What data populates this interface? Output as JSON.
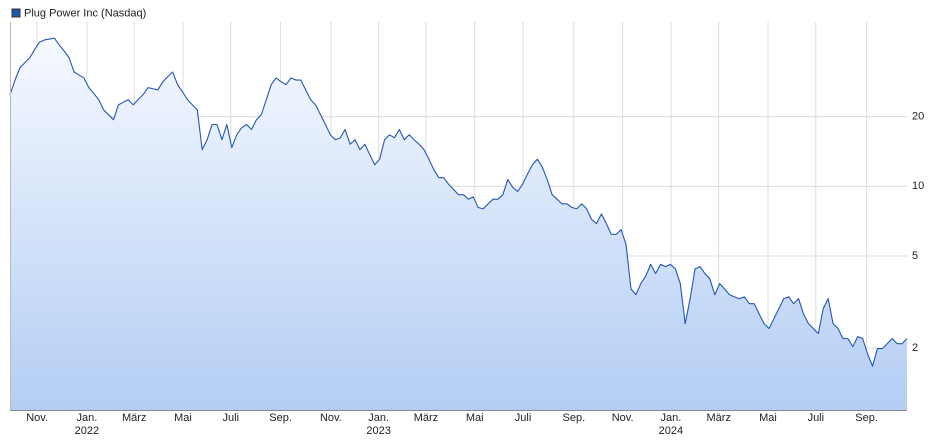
{
  "chart_data": {
    "type": "line",
    "log_y": true,
    "grid": true,
    "xlim": [
      0,
      182
    ],
    "ylim": [
      1.08,
      51.3
    ],
    "yticks": [
      2,
      5,
      10,
      20
    ],
    "xticks": [
      {
        "value": 5.5,
        "label": "Nov."
      },
      {
        "value": 15.6,
        "label": "Jan."
      },
      {
        "value": 25.2,
        "label": "März"
      },
      {
        "value": 35.1,
        "label": "Mai"
      },
      {
        "value": 44.8,
        "label": "Juli"
      },
      {
        "value": 54.9,
        "label": "Sep."
      },
      {
        "value": 65.1,
        "label": "Nov."
      },
      {
        "value": 74.8,
        "label": "Jan."
      },
      {
        "value": 84.4,
        "label": "März"
      },
      {
        "value": 94.3,
        "label": "Mai"
      },
      {
        "value": 104.1,
        "label": "Juli"
      },
      {
        "value": 114.4,
        "label": "Sep."
      },
      {
        "value": 124.3,
        "label": "Nov."
      },
      {
        "value": 134.1,
        "label": "Jan."
      },
      {
        "value": 143.8,
        "label": "März"
      },
      {
        "value": 153.8,
        "label": "Mai"
      },
      {
        "value": 163.5,
        "label": "Juli"
      },
      {
        "value": 173.8,
        "label": "Sep."
      }
    ],
    "year_ticks": [
      {
        "value": 15.6,
        "label": "2022"
      },
      {
        "value": 74.8,
        "label": "2023"
      },
      {
        "value": 134.1,
        "label": "2024"
      }
    ],
    "series": [
      {
        "name": "Plug Power Inc (Nasdaq)",
        "color": "#2456b4",
        "fill_top": "#f6f9ff",
        "fill_bottom": "#b3cdf4",
        "values": [
          24.9,
          28.7,
          32.5,
          34.2,
          35.9,
          39.0,
          42.0,
          42.9,
          43.3,
          43.7,
          40.8,
          38.4,
          35.9,
          31.2,
          30.3,
          29.4,
          26.7,
          25.2,
          23.7,
          21.4,
          20.4,
          19.4,
          22.5,
          23.1,
          23.7,
          22.5,
          23.7,
          24.9,
          26.7,
          26.4,
          26.1,
          28.3,
          29.8,
          31.2,
          27.5,
          25.6,
          23.7,
          22.5,
          21.4,
          14.4,
          15.9,
          18.5,
          18.5,
          15.9,
          18.5,
          14.7,
          16.7,
          17.9,
          18.5,
          17.6,
          19.4,
          20.4,
          23.7,
          27.5,
          29.4,
          28.3,
          27.5,
          29.4,
          28.8,
          28.8,
          26.1,
          23.7,
          22.5,
          20.4,
          18.5,
          16.7,
          15.9,
          16.2,
          17.6,
          15.2,
          15.9,
          14.4,
          15.2,
          13.7,
          12.4,
          13.1,
          15.9,
          16.7,
          16.2,
          17.6,
          15.9,
          16.7,
          15.9,
          15.2,
          14.4,
          13.1,
          11.8,
          10.9,
          10.9,
          10.2,
          9.7,
          9.2,
          9.2,
          8.8,
          9.0,
          8.1,
          8.0,
          8.4,
          8.8,
          8.8,
          9.2,
          10.7,
          9.9,
          9.5,
          10.2,
          11.3,
          12.4,
          13.1,
          12.1,
          10.7,
          9.2,
          8.8,
          8.4,
          8.4,
          8.1,
          8.0,
          8.4,
          8.0,
          7.2,
          6.9,
          7.6,
          6.9,
          6.2,
          6.2,
          6.5,
          5.6,
          3.6,
          3.4,
          3.8,
          4.1,
          4.6,
          4.2,
          4.6,
          4.5,
          4.6,
          4.4,
          3.8,
          2.55,
          3.27,
          4.4,
          4.5,
          4.2,
          3.98,
          3.4,
          3.8,
          3.6,
          3.4,
          3.33,
          3.27,
          3.33,
          3.11,
          3.11,
          2.81,
          2.55,
          2.43,
          2.68,
          2.96,
          3.27,
          3.33,
          3.11,
          3.27,
          2.81,
          2.55,
          2.43,
          2.31,
          2.96,
          3.27,
          2.55,
          2.43,
          2.2,
          2.2,
          2.03,
          2.24,
          2.2,
          1.89,
          1.67,
          1.99,
          1.99,
          2.09,
          2.2,
          2.09,
          2.09,
          2.2
        ]
      }
    ]
  }
}
